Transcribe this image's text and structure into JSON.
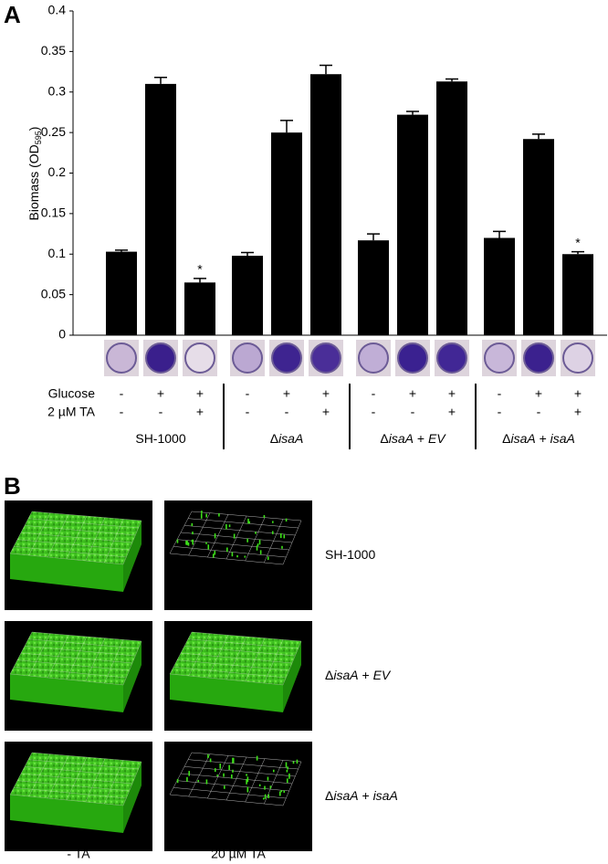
{
  "chart_data": {
    "type": "bar",
    "panel_label": "A",
    "y_label": [
      {
        "t": "Biomass (OD"
      },
      {
        "t": "595",
        "sub": true
      },
      {
        "t": ")"
      }
    ],
    "ylim": [
      0,
      0.4
    ],
    "yticks": [
      0,
      0.05,
      0.1,
      0.15,
      0.2,
      0.25,
      0.3,
      0.35,
      0.4
    ],
    "color": "#000000",
    "values": [
      0.103,
      0.31,
      0.065,
      0.098,
      0.25,
      0.322,
      0.117,
      0.272,
      0.313,
      0.12,
      0.242,
      0.1
    ],
    "errors": [
      0.002,
      0.008,
      0.005,
      0.004,
      0.015,
      0.011,
      0.008,
      0.004,
      0.003,
      0.008,
      0.006,
      0.003
    ],
    "markers": [
      null,
      null,
      "*",
      null,
      null,
      null,
      null,
      null,
      null,
      null,
      null,
      "*"
    ],
    "row_labels": [
      "Glucose",
      "2 µM TA"
    ],
    "rows": [
      [
        "-",
        "+",
        "+",
        "-",
        "+",
        "+",
        "-",
        "+",
        "+",
        "-",
        "+",
        "+"
      ],
      [
        "-",
        "-",
        "+",
        "-",
        "-",
        "+",
        "-",
        "-",
        "+",
        "-",
        "-",
        "+"
      ]
    ],
    "groups": [
      [
        {
          "t": "SH-1000"
        }
      ],
      [
        {
          "t": "Δ"
        },
        {
          "t": "isaA",
          "italic": true
        }
      ],
      [
        {
          "t": "Δ"
        },
        {
          "t": "isaA",
          "italic": true
        },
        {
          "t": " + "
        },
        {
          "t": "EV",
          "italic": true
        }
      ],
      [
        {
          "t": "Δ"
        },
        {
          "t": "isaA",
          "italic": true
        },
        {
          "t": " + "
        },
        {
          "t": "isaA",
          "italic": true
        }
      ]
    ]
  },
  "panel_b": {
    "label": "B",
    "row_labels": [
      [
        {
          "t": "SH-1000"
        }
      ],
      [
        {
          "t": "Δ"
        },
        {
          "t": "isaA",
          "italic": true
        },
        {
          "t": " + "
        },
        {
          "t": "EV",
          "italic": true
        }
      ],
      [
        {
          "t": "Δ"
        },
        {
          "t": "isaA",
          "italic": true
        },
        {
          "t": " + "
        },
        {
          "t": "isaA",
          "italic": true
        }
      ]
    ],
    "col_labels": [
      "- TA",
      "20 µM TA"
    ]
  }
}
